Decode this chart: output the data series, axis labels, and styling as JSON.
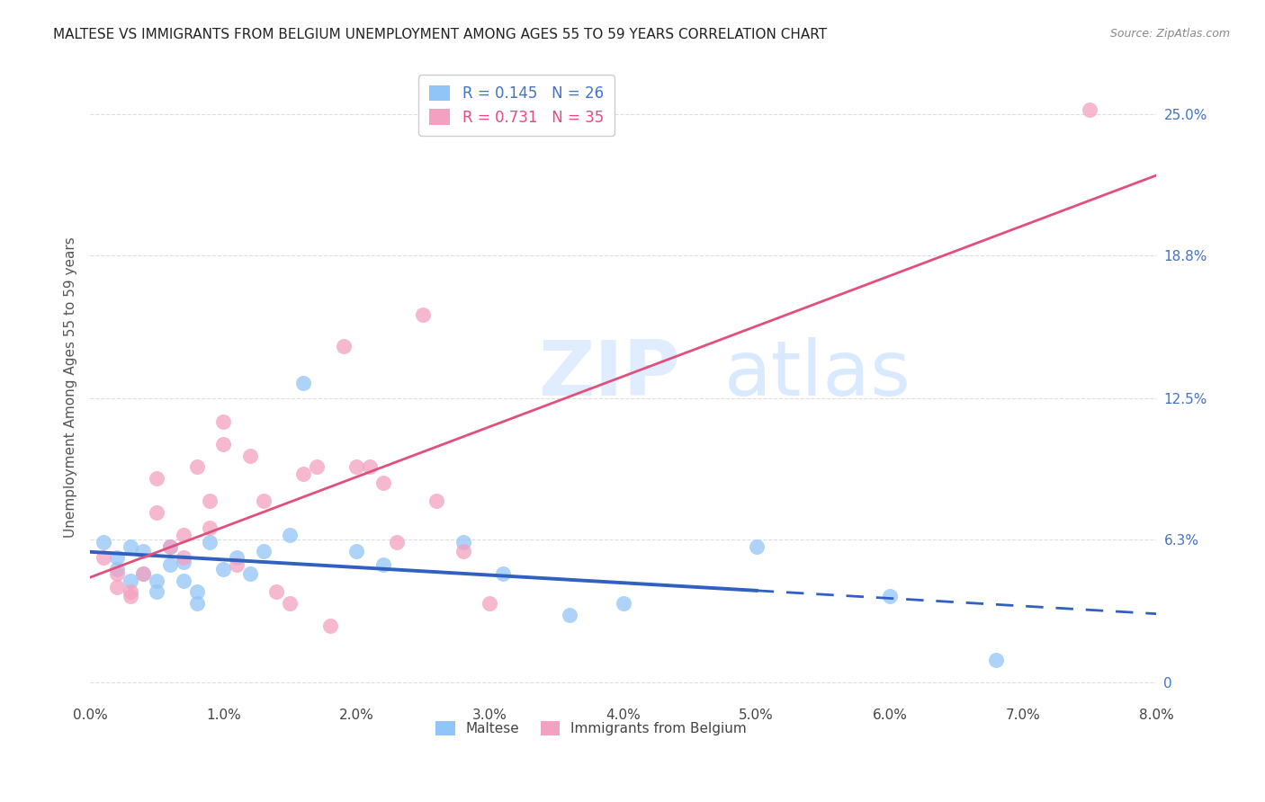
{
  "title": "MALTESE VS IMMIGRANTS FROM BELGIUM UNEMPLOYMENT AMONG AGES 55 TO 59 YEARS CORRELATION CHART",
  "source": "Source: ZipAtlas.com",
  "ylabel": "Unemployment Among Ages 55 to 59 years",
  "xlim": [
    0.0,
    0.08
  ],
  "ylim": [
    -0.008,
    0.268
  ],
  "xtick_labels": [
    "0.0%",
    "1.0%",
    "2.0%",
    "3.0%",
    "4.0%",
    "5.0%",
    "6.0%",
    "7.0%",
    "8.0%"
  ],
  "xtick_values": [
    0.0,
    0.01,
    0.02,
    0.03,
    0.04,
    0.05,
    0.06,
    0.07,
    0.08
  ],
  "ytick_labels_right": [
    "0",
    "6.3%",
    "12.5%",
    "18.8%",
    "25.0%"
  ],
  "ytick_values_right": [
    0.0,
    0.063,
    0.125,
    0.188,
    0.25
  ],
  "legend_labels_bottom": [
    "Maltese",
    "Immigrants from Belgium"
  ],
  "maltese_color": "#92C5F7",
  "belgium_color": "#F4A0C0",
  "blue_line_color": "#3060C0",
  "pink_line_color": "#E0507A",
  "watermark_zip": "ZIP",
  "watermark_atlas": "atlas",
  "blue_regression": [
    0.047,
    0.044
  ],
  "pink_regression": [
    3.08,
    0.012
  ],
  "maltese_points": [
    [
      0.001,
      0.062
    ],
    [
      0.002,
      0.055
    ],
    [
      0.002,
      0.05
    ],
    [
      0.003,
      0.06
    ],
    [
      0.003,
      0.045
    ],
    [
      0.004,
      0.058
    ],
    [
      0.004,
      0.048
    ],
    [
      0.005,
      0.045
    ],
    [
      0.005,
      0.04
    ],
    [
      0.006,
      0.052
    ],
    [
      0.006,
      0.06
    ],
    [
      0.007,
      0.053
    ],
    [
      0.007,
      0.045
    ],
    [
      0.008,
      0.04
    ],
    [
      0.008,
      0.035
    ],
    [
      0.009,
      0.062
    ],
    [
      0.01,
      0.05
    ],
    [
      0.011,
      0.055
    ],
    [
      0.012,
      0.048
    ],
    [
      0.013,
      0.058
    ],
    [
      0.015,
      0.065
    ],
    [
      0.016,
      0.132
    ],
    [
      0.02,
      0.058
    ],
    [
      0.022,
      0.052
    ],
    [
      0.028,
      0.062
    ],
    [
      0.031,
      0.048
    ],
    [
      0.036,
      0.03
    ],
    [
      0.04,
      0.035
    ],
    [
      0.05,
      0.06
    ],
    [
      0.06,
      0.038
    ],
    [
      0.068,
      0.01
    ]
  ],
  "belgium_points": [
    [
      0.001,
      0.055
    ],
    [
      0.002,
      0.048
    ],
    [
      0.002,
      0.042
    ],
    [
      0.003,
      0.04
    ],
    [
      0.003,
      0.038
    ],
    [
      0.004,
      0.048
    ],
    [
      0.005,
      0.075
    ],
    [
      0.005,
      0.09
    ],
    [
      0.006,
      0.06
    ],
    [
      0.007,
      0.055
    ],
    [
      0.007,
      0.065
    ],
    [
      0.008,
      0.095
    ],
    [
      0.009,
      0.068
    ],
    [
      0.009,
      0.08
    ],
    [
      0.01,
      0.105
    ],
    [
      0.01,
      0.115
    ],
    [
      0.011,
      0.052
    ],
    [
      0.012,
      0.1
    ],
    [
      0.013,
      0.08
    ],
    [
      0.014,
      0.04
    ],
    [
      0.015,
      0.035
    ],
    [
      0.016,
      0.092
    ],
    [
      0.017,
      0.095
    ],
    [
      0.018,
      0.025
    ],
    [
      0.019,
      0.148
    ],
    [
      0.02,
      0.095
    ],
    [
      0.021,
      0.095
    ],
    [
      0.022,
      0.088
    ],
    [
      0.023,
      0.062
    ],
    [
      0.025,
      0.162
    ],
    [
      0.026,
      0.08
    ],
    [
      0.028,
      0.058
    ],
    [
      0.03,
      0.035
    ],
    [
      0.075,
      0.252
    ]
  ]
}
